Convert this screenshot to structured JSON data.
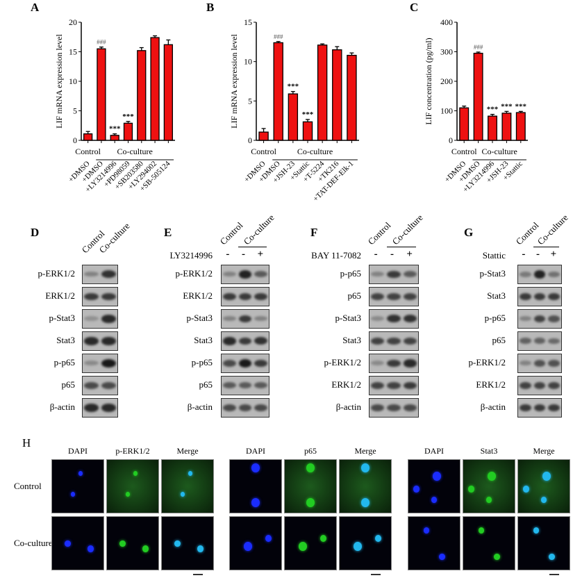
{
  "chart_data": [
    {
      "panel": "A",
      "type": "bar",
      "ylabel": "LIF mRNA expression level",
      "ylim": [
        0,
        20
      ],
      "yticks": [
        0,
        5,
        10,
        15,
        20
      ],
      "group_labels": [
        "Control",
        "Co-culture"
      ],
      "categories": [
        "+DMSO",
        "+DMSO",
        "+LY3214996",
        "+PD98059",
        "+SB203580",
        "+LY294002",
        "+SB-505124"
      ],
      "values": [
        1.1,
        15.5,
        0.85,
        2.9,
        15.2,
        17.4,
        16.2
      ],
      "errors": [
        0.4,
        0.3,
        0.25,
        0.3,
        0.5,
        0.3,
        0.8
      ],
      "annotations": [
        "",
        "###",
        "***",
        "***",
        "",
        "",
        ""
      ],
      "color": "#ee1111"
    },
    {
      "panel": "B",
      "type": "bar",
      "ylabel": "LIF mRNA expression level",
      "ylim": [
        0,
        15
      ],
      "yticks": [
        0,
        5,
        10,
        15
      ],
      "group_labels": [
        "Control",
        "Co-culture"
      ],
      "categories": [
        "+DMSO",
        "+DMSO",
        "+JSH-23",
        "+Stattic",
        "+T-5224",
        "+TK216",
        "+TAT-DEF-Elk-1"
      ],
      "values": [
        1.05,
        12.4,
        5.9,
        2.35,
        12.1,
        11.5,
        10.8
      ],
      "errors": [
        0.45,
        0.15,
        0.3,
        0.3,
        0.15,
        0.4,
        0.3
      ],
      "annotations": [
        "",
        "###",
        "***",
        "***",
        "",
        "",
        ""
      ],
      "color": "#ee1111"
    },
    {
      "panel": "C",
      "type": "bar",
      "ylabel": "LIF concentration (pg/ml)",
      "ylim": [
        0,
        400
      ],
      "yticks": [
        0,
        100,
        200,
        300,
        400
      ],
      "group_labels": [
        "Control",
        "Co-culture"
      ],
      "categories": [
        "+DMSO",
        "+DMSO",
        "+LY3214996",
        "+JSH-23",
        "+Stattic"
      ],
      "values": [
        110,
        295,
        82,
        92,
        94
      ],
      "errors": [
        6,
        4,
        6,
        6,
        4
      ],
      "annotations": [
        "",
        "###",
        "***",
        "***",
        "***"
      ],
      "color": "#ee1111"
    }
  ],
  "blots": [
    {
      "panel": "D",
      "columns": [
        "Control",
        "Co-culture"
      ],
      "treatment": "",
      "signs": [],
      "rows": [
        {
          "label": "p-ERK1/2",
          "bands": [
            0.35,
            0.85
          ]
        },
        {
          "label": "ERK1/2",
          "bands": [
            0.8,
            0.8
          ]
        },
        {
          "label": "p-Stat3",
          "bands": [
            0.25,
            0.9
          ]
        },
        {
          "label": "Stat3",
          "bands": [
            0.9,
            0.9
          ]
        },
        {
          "label": "p-p65",
          "bands": [
            0.3,
            1
          ]
        },
        {
          "label": "p65",
          "bands": [
            0.7,
            0.7
          ]
        },
        {
          "label": "β-actin",
          "bands": [
            0.9,
            0.9
          ]
        }
      ]
    },
    {
      "panel": "E",
      "columns": [
        "Control",
        "Co-culture"
      ],
      "treatment": "LY3214996",
      "signs": [
        "-",
        "-",
        "+"
      ],
      "rows": [
        {
          "label": "p-ERK1/2",
          "bands": [
            0.35,
            0.95,
            0.6
          ]
        },
        {
          "label": "ERK1/2",
          "bands": [
            0.8,
            0.8,
            0.8
          ]
        },
        {
          "label": "p-Stat3",
          "bands": [
            0.35,
            0.8,
            0.35
          ]
        },
        {
          "label": "Stat3",
          "bands": [
            0.9,
            0.8,
            0.85
          ]
        },
        {
          "label": "p-p65",
          "bands": [
            0.7,
            1,
            0.8
          ]
        },
        {
          "label": "p65",
          "bands": [
            0.6,
            0.6,
            0.6
          ]
        },
        {
          "label": "β-actin",
          "bands": [
            0.7,
            0.7,
            0.7
          ]
        }
      ]
    },
    {
      "panel": "F",
      "columns": [
        "Control",
        "Co-culture"
      ],
      "treatment": "BAY 11-7082",
      "signs": [
        "-",
        "-",
        "+"
      ],
      "rows": [
        {
          "label": "p-p65",
          "bands": [
            0.35,
            0.8,
            0.6
          ]
        },
        {
          "label": "p65",
          "bands": [
            0.75,
            0.75,
            0.75
          ]
        },
        {
          "label": "p-Stat3",
          "bands": [
            0.3,
            0.85,
            0.85
          ]
        },
        {
          "label": "Stat3",
          "bands": [
            0.75,
            0.75,
            0.75
          ]
        },
        {
          "label": "p-ERK1/2",
          "bands": [
            0.3,
            0.8,
            0.9
          ]
        },
        {
          "label": "ERK1/2",
          "bands": [
            0.75,
            0.75,
            0.8
          ]
        },
        {
          "label": "β-actin",
          "bands": [
            0.7,
            0.7,
            0.7
          ]
        }
      ]
    },
    {
      "panel": "G",
      "columns": [
        "Control",
        "Co-culture"
      ],
      "treatment": "Stattic",
      "signs": [
        "-",
        "-",
        "+"
      ],
      "rows": [
        {
          "label": "p-Stat3",
          "bands": [
            0.4,
            0.95,
            0.45
          ]
        },
        {
          "label": "Stat3",
          "bands": [
            0.8,
            0.8,
            0.8
          ]
        },
        {
          "label": "p-p65",
          "bands": [
            0.35,
            0.75,
            0.65
          ]
        },
        {
          "label": "p65",
          "bands": [
            0.55,
            0.55,
            0.5
          ]
        },
        {
          "label": "p-ERK1/2",
          "bands": [
            0.35,
            0.65,
            0.65
          ]
        },
        {
          "label": "ERK1/2",
          "bands": [
            0.75,
            0.75,
            0.75
          ]
        },
        {
          "label": "β-actin",
          "bands": [
            0.8,
            0.8,
            0.8
          ]
        }
      ]
    }
  ],
  "microscopy": {
    "panel": "H",
    "row_labels": [
      "Control",
      "Co-culture"
    ],
    "groups": [
      {
        "headers": [
          "DAPI",
          "p-ERK1/2",
          "Merge"
        ]
      },
      {
        "headers": [
          "DAPI",
          "p65",
          "Merge"
        ]
      },
      {
        "headers": [
          "DAPI",
          "Stat3",
          "Merge"
        ]
      }
    ],
    "colors": {
      "dapi": "#1a2cff",
      "marker": "#22cc22",
      "merge": "#22b8ee"
    }
  }
}
